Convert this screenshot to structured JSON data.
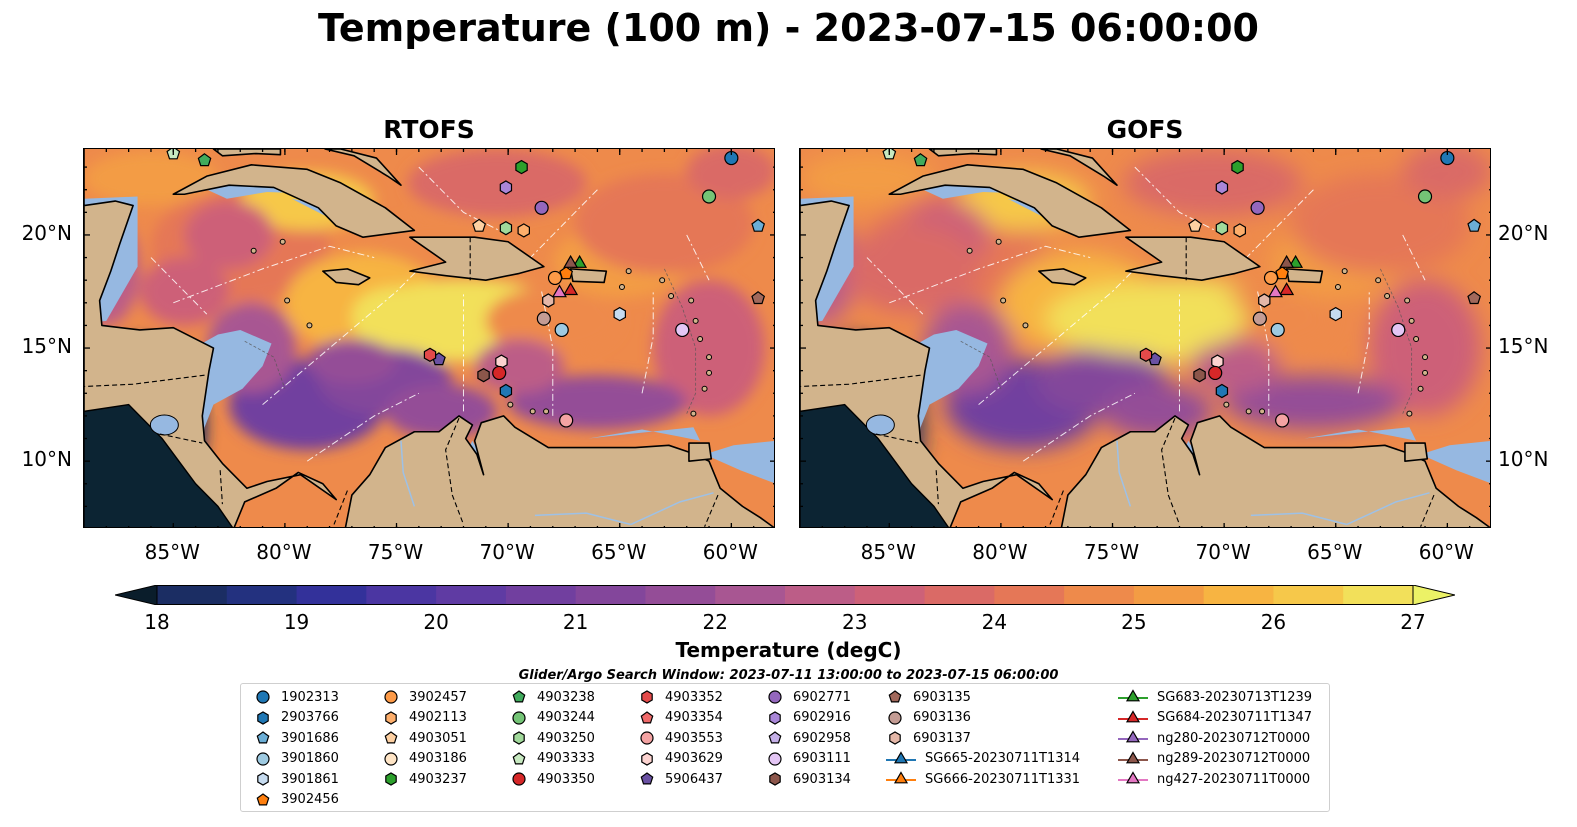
{
  "title": "Temperature (100 m) - 2023-07-15 06:00:00",
  "panels": [
    {
      "title": "RTOFS",
      "model": "rtofs"
    },
    {
      "title": "GOFS",
      "model": "gofs"
    }
  ],
  "lat_labels": [
    "20°N",
    "15°N",
    "10°N"
  ],
  "lon_labels": [
    "85°W",
    "80°W",
    "75°W",
    "70°W",
    "65°W",
    "60°W"
  ],
  "map_extent": {
    "lon_min": -89,
    "lon_max": -58,
    "lat_min": 7,
    "lat_max": 23.8
  },
  "colorbar": {
    "label": "Temperature (degC)",
    "min": 18,
    "max": 27,
    "step": 0.5,
    "ticks": [
      "18",
      "19",
      "20",
      "21",
      "22",
      "23",
      "24",
      "25",
      "26",
      "27"
    ],
    "colors": [
      "#0c2433",
      "#1b2d63",
      "#23317f",
      "#33319a",
      "#4b36a2",
      "#5f3ba3",
      "#713f9f",
      "#83469b",
      "#944d97",
      "#a85692",
      "#bc5d87",
      "#cd6178",
      "#da6a66",
      "#e57757",
      "#ee8a4b",
      "#f39c44",
      "#f7b442",
      "#f6c84a",
      "#f2e05a"
    ],
    "under_color": "#0a1d2b",
    "over_color": "#ecf266"
  },
  "search_window": "Glider/Argo Search Window: 2023-07-11 13:00:00 to 2023-07-15 06:00:00",
  "legend": [
    {
      "label": "1902313",
      "marker": "circle",
      "color": "#1f77b4"
    },
    {
      "label": "2903766",
      "marker": "hexagon",
      "color": "#1f77b4"
    },
    {
      "label": "3901686",
      "marker": "pentagon",
      "color": "#6baed6"
    },
    {
      "label": "3901860",
      "marker": "circle",
      "color": "#9ecae1"
    },
    {
      "label": "3901861",
      "marker": "hexagon",
      "color": "#c6dbef"
    },
    {
      "label": "3902456",
      "marker": "pentagon",
      "color": "#ff7f0e"
    },
    {
      "label": "3902457",
      "marker": "circle",
      "color": "#fd9a47"
    },
    {
      "label": "4902113",
      "marker": "hexagon",
      "color": "#fdae6b"
    },
    {
      "label": "4903051",
      "marker": "pentagon",
      "color": "#fdd0a2"
    },
    {
      "label": "4903186",
      "marker": "circle",
      "color": "#ffe5c6"
    },
    {
      "label": "4903237",
      "marker": "hexagon",
      "color": "#2ca02c"
    },
    {
      "label": "4903238",
      "marker": "pentagon",
      "color": "#41ab5d"
    },
    {
      "label": "4903244",
      "marker": "circle",
      "color": "#74c476"
    },
    {
      "label": "4903250",
      "marker": "hexagon",
      "color": "#a1d99b"
    },
    {
      "label": "4903333",
      "marker": "pentagon",
      "color": "#c7e9c0"
    },
    {
      "label": "4903350",
      "marker": "circle",
      "color": "#d62728"
    },
    {
      "label": "4903352",
      "marker": "hexagon",
      "color": "#e34a4a"
    },
    {
      "label": "4903354",
      "marker": "pentagon",
      "color": "#ef6a6a"
    },
    {
      "label": "4903553",
      "marker": "circle",
      "color": "#f4a3a3"
    },
    {
      "label": "4903629",
      "marker": "hexagon",
      "color": "#fcd3d0"
    },
    {
      "label": "5906437",
      "marker": "pentagon",
      "color": "#6a51a3"
    },
    {
      "label": "6902771",
      "marker": "circle",
      "color": "#9467bd"
    },
    {
      "label": "6902916",
      "marker": "hexagon",
      "color": "#a986d8"
    },
    {
      "label": "6902958",
      "marker": "pentagon",
      "color": "#c5b0e8"
    },
    {
      "label": "6903111",
      "marker": "circle",
      "color": "#e4c6f5"
    },
    {
      "label": "6903134",
      "marker": "hexagon",
      "color": "#8c564b"
    },
    {
      "label": "6903135",
      "marker": "pentagon",
      "color": "#a1685b"
    },
    {
      "label": "6903136",
      "marker": "circle",
      "color": "#c49c94"
    },
    {
      "label": "6903137",
      "marker": "hexagon",
      "color": "#e4b7a8"
    },
    {
      "label": "SG665-20230711T1314",
      "marker": "triangle",
      "color": "#1f77b4",
      "line": true
    },
    {
      "label": "SG666-20230711T1331",
      "marker": "triangle",
      "color": "#ff7f0e",
      "line": true
    },
    {
      "label": "SG683-20230713T1239",
      "marker": "triangle",
      "color": "#2ca02c",
      "line": true
    },
    {
      "label": "SG684-20230711T1347",
      "marker": "triangle",
      "color": "#d62728",
      "line": true
    },
    {
      "label": "ng280-20230712T0000",
      "marker": "triangle",
      "color": "#9467bd",
      "line": true
    },
    {
      "label": "ng289-20230712T0000",
      "marker": "triangle",
      "color": "#8c564b",
      "line": true
    },
    {
      "label": "ng427-20230711T0000",
      "marker": "triangle",
      "color": "#e377c2",
      "line": true
    }
  ],
  "markers": [
    {
      "id": "1902313",
      "lon": -60.0,
      "lat": 23.4
    },
    {
      "id": "3901686",
      "lon": -58.8,
      "lat": 20.4
    },
    {
      "id": "6903135",
      "lon": -58.8,
      "lat": 17.2
    },
    {
      "id": "4903244",
      "lon": -61.0,
      "lat": 21.7
    },
    {
      "id": "6902771",
      "lon": -68.5,
      "lat": 21.2
    },
    {
      "id": "6902916",
      "lon": -70.1,
      "lat": 22.1
    },
    {
      "id": "4903238",
      "lon": -83.6,
      "lat": 23.3
    },
    {
      "id": "4903333",
      "lon": -85.0,
      "lat": 23.6
    },
    {
      "id": "4903051",
      "lon": -71.3,
      "lat": 20.4
    },
    {
      "id": "4903250",
      "lon": -70.1,
      "lat": 20.3
    },
    {
      "id": "4902113",
      "lon": -69.3,
      "lat": 20.2
    },
    {
      "id": "3902457",
      "lon": -67.9,
      "lat": 18.1
    },
    {
      "id": "3902456",
      "lon": -67.4,
      "lat": 18.3
    },
    {
      "id": "3901861",
      "lon": -65.0,
      "lat": 16.5
    },
    {
      "id": "3901860",
      "lon": -67.6,
      "lat": 15.8
    },
    {
      "id": "6903136",
      "lon": -68.4,
      "lat": 16.3
    },
    {
      "id": "6903137",
      "lon": -68.2,
      "lat": 17.1
    },
    {
      "id": "6903111",
      "lon": -62.2,
      "lat": 15.8
    },
    {
      "id": "4903629",
      "lon": -70.3,
      "lat": 14.4
    },
    {
      "id": "4903350",
      "lon": -70.4,
      "lat": 13.9
    },
    {
      "id": "6903134",
      "lon": -71.1,
      "lat": 13.8
    },
    {
      "id": "5906437",
      "lon": -73.1,
      "lat": 14.5
    },
    {
      "id": "4903352",
      "lon": -73.5,
      "lat": 14.7
    },
    {
      "id": "2903766",
      "lon": -70.1,
      "lat": 13.1
    },
    {
      "id": "4903553",
      "lon": -67.4,
      "lat": 11.8
    },
    {
      "id": "4903237",
      "lon": -69.4,
      "lat": 23.0
    },
    {
      "id": "SG683-20230713T1239",
      "lon": -66.8,
      "lat": 18.8
    },
    {
      "id": "ng289-20230712T0000",
      "lon": -67.2,
      "lat": 18.8
    },
    {
      "id": "SG684-20230711T1347",
      "lon": -67.2,
      "lat": 17.6
    },
    {
      "id": "ng427-20230711T0000",
      "lon": -67.7,
      "lat": 17.5
    }
  ]
}
